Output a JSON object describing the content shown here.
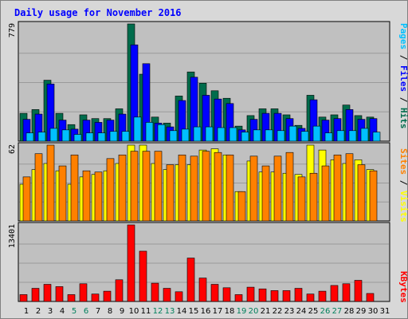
{
  "chart_data": {
    "type": "bar",
    "title": "Daily usage for November 2016",
    "colors": {
      "hits": "#006c4c",
      "files": "#0000ff",
      "pages": "#00c0ff",
      "visits": "#ffff00",
      "sites": "#ff8000",
      "kbytes": "#ff0000",
      "weekend_day": "#00805c",
      "weekday": "#000000",
      "title": "#0000ff",
      "plot_bg": "#c0c0c0",
      "frame_bg": "#d8d8d8"
    },
    "days": [
      "1",
      "2",
      "3",
      "4",
      "5",
      "6",
      "7",
      "8",
      "9",
      "10",
      "11",
      "12",
      "13",
      "14",
      "15",
      "16",
      "17",
      "18",
      "19",
      "20",
      "21",
      "22",
      "23",
      "24",
      "25",
      "26",
      "27",
      "28",
      "29",
      "30",
      "31"
    ],
    "weekend_days": [
      "5",
      "6",
      "12",
      "13",
      "19",
      "20",
      "26",
      "27"
    ],
    "panels": [
      {
        "id": "requests",
        "max_label": "779",
        "ylim": [
          0,
          779
        ],
        "legend": [
          {
            "text": "Pages",
            "color": "#00c0ff"
          },
          {
            "text": " / ",
            "color": "#000000"
          },
          {
            "text": "Files",
            "color": "#0000ff"
          },
          {
            "text": " / ",
            "color": "#000000"
          },
          {
            "text": "Hits",
            "color": "#006c4c"
          }
        ],
        "series": [
          {
            "name": "Hits",
            "color": "#006c4c",
            "values": [
              185,
              210,
              405,
              185,
              110,
              175,
              150,
              150,
              215,
              779,
              445,
              160,
              120,
              300,
              460,
              385,
              335,
              285,
              100,
              170,
              215,
              215,
              175,
              105,
              305,
              160,
              175,
              240,
              170,
              160,
              null
            ]
          },
          {
            "name": "Files",
            "color": "#0000ff",
            "values": [
              145,
              180,
              380,
              140,
              80,
              140,
              125,
              140,
              180,
              640,
              515,
              120,
              95,
              270,
              425,
              305,
              280,
              250,
              75,
              145,
              185,
              185,
              150,
              85,
              275,
              140,
              150,
              210,
              145,
              150,
              null
            ]
          },
          {
            "name": "Pages",
            "color": "#00c0ff",
            "values": [
              55,
              60,
              85,
              75,
              45,
              55,
              55,
              65,
              65,
              160,
              125,
              110,
              70,
              80,
              95,
              95,
              90,
              90,
              60,
              75,
              75,
              70,
              100,
              65,
              100,
              55,
              70,
              70,
              85,
              60,
              null
            ]
          }
        ]
      },
      {
        "id": "visits",
        "max_label": "62",
        "ylim": [
          0,
          62
        ],
        "legend": [
          {
            "text": "Sites",
            "color": "#ff8000"
          },
          {
            "text": " / ",
            "color": "#000000"
          },
          {
            "text": "Visits",
            "color": "#ffff00"
          }
        ],
        "series": [
          {
            "name": "Visits",
            "color": "#ffff00",
            "values": [
              30,
              42,
              47,
              41,
              30,
              36,
              38,
              41,
              47,
              62,
              62,
              47,
              42,
              46,
              46,
              58,
              59,
              54,
              24,
              49,
              40,
              40,
              39,
              38,
              62,
              58,
              50,
              47,
              50,
              42,
              null
            ]
          },
          {
            "name": "Sites",
            "color": "#ff8000",
            "values": [
              36,
              55,
              62,
              45,
              54,
              41,
              40,
              51,
              54,
              57,
              57,
              57,
              46,
              54,
              53,
              57,
              56,
              54,
              24,
              53,
              45,
              53,
              56,
              36,
              39,
              45,
              54,
              55,
              46,
              41,
              null
            ]
          }
        ]
      },
      {
        "id": "kbytes",
        "max_label": "13401",
        "ylim": [
          0,
          13401
        ],
        "legend": [
          {
            "text": "KBytes",
            "color": "#ff0000"
          }
        ],
        "series": [
          {
            "name": "KBytes",
            "color": "#ff0000",
            "values": [
              1200,
              2300,
              3000,
              2600,
              1200,
              3100,
              1300,
              1800,
              3800,
              13401,
              8800,
              3200,
              2300,
              1700,
              7600,
              4100,
              3000,
              2400,
              1200,
              2500,
              2200,
              1900,
              1900,
              2300,
              1300,
              1800,
              2800,
              3100,
              3700,
              1400,
              null
            ]
          }
        ]
      }
    ]
  }
}
